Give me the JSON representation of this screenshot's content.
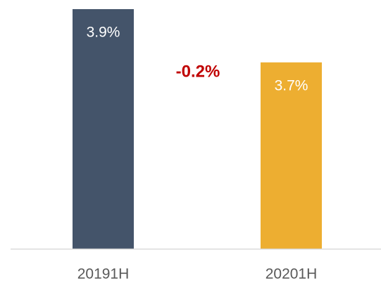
{
  "chart_data": {
    "type": "bar",
    "categories": [
      "20191H",
      "20201H"
    ],
    "values": [
      3.9,
      3.7
    ],
    "value_labels": [
      "3.9%",
      "3.7%"
    ],
    "colors": [
      "#44546a",
      "#edae31"
    ],
    "ylim": [
      3,
      3.9
    ],
    "annotation": "-0.2%"
  }
}
